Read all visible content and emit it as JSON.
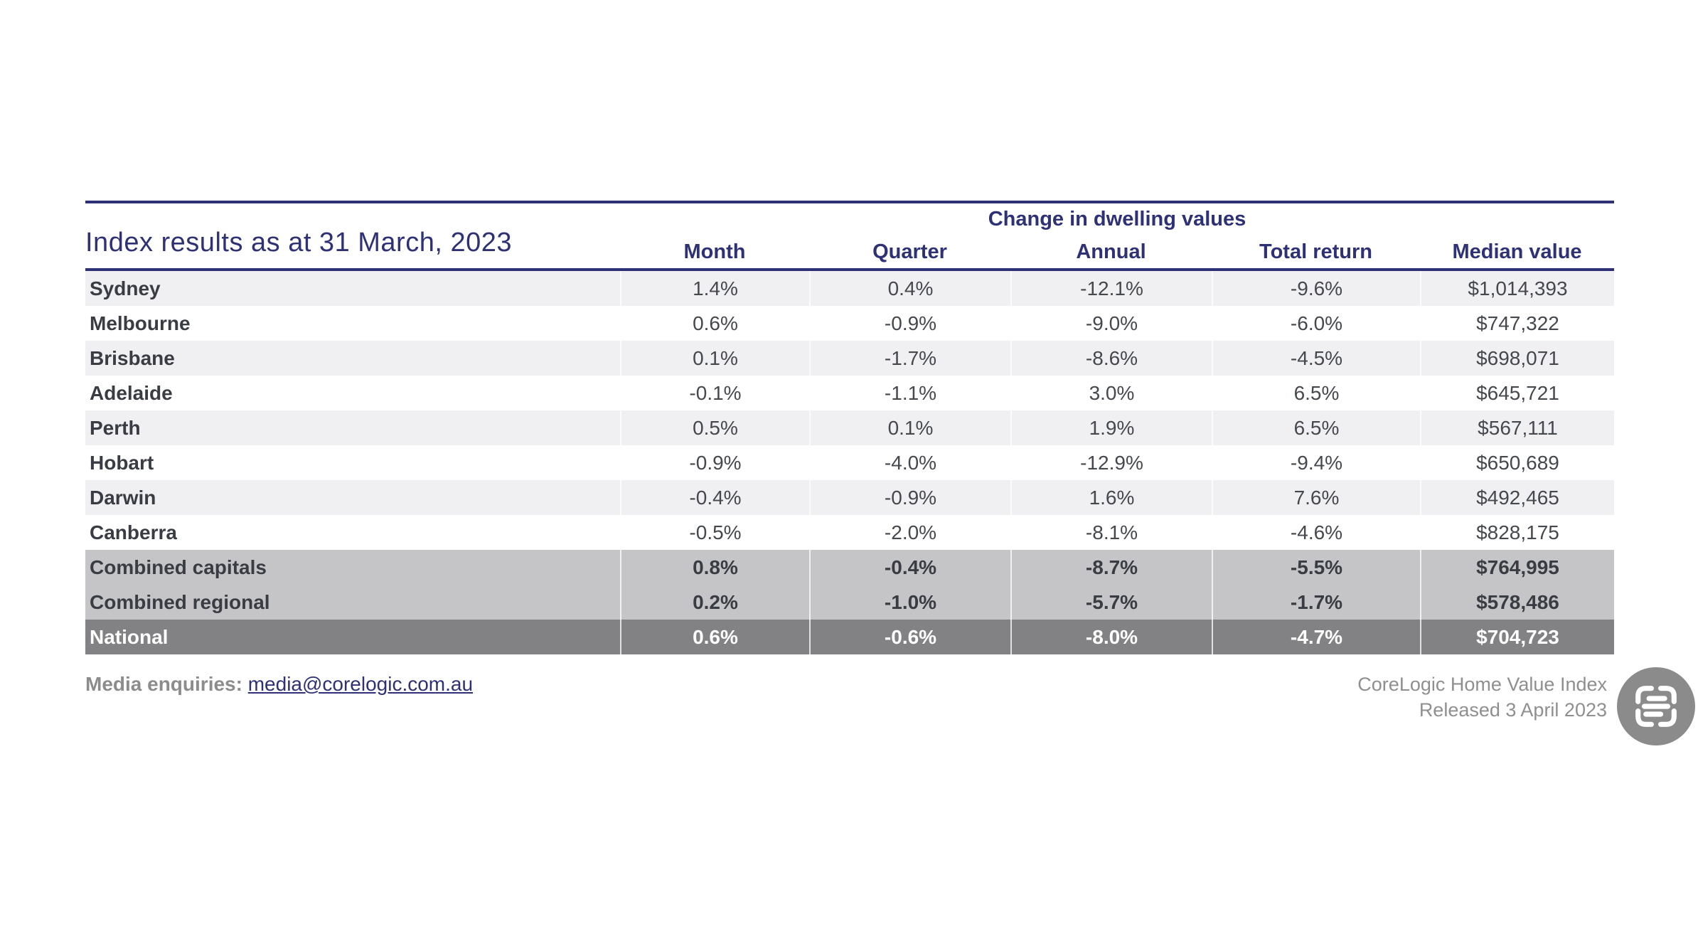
{
  "title": "Index results as at 31 March, 2023",
  "chart_data": {
    "type": "table",
    "title": "Index results as at 31 March, 2023",
    "group_header": "Change in dwelling values",
    "columns": [
      "Month",
      "Quarter",
      "Annual",
      "Total return",
      "Median value"
    ],
    "rows": [
      {
        "label": "Sydney",
        "values": [
          "1.4%",
          "0.4%",
          "-12.1%",
          "-9.6%",
          "$1,014,393"
        ],
        "style": "stripe"
      },
      {
        "label": "Melbourne",
        "values": [
          "0.6%",
          "-0.9%",
          "-9.0%",
          "-6.0%",
          "$747,322"
        ],
        "style": "plain"
      },
      {
        "label": "Brisbane",
        "values": [
          "0.1%",
          "-1.7%",
          "-8.6%",
          "-4.5%",
          "$698,071"
        ],
        "style": "stripe"
      },
      {
        "label": "Adelaide",
        "values": [
          "-0.1%",
          "-1.1%",
          "3.0%",
          "6.5%",
          "$645,721"
        ],
        "style": "plain"
      },
      {
        "label": "Perth",
        "values": [
          "0.5%",
          "0.1%",
          "1.9%",
          "6.5%",
          "$567,111"
        ],
        "style": "stripe"
      },
      {
        "label": "Hobart",
        "values": [
          "-0.9%",
          "-4.0%",
          "-12.9%",
          "-9.4%",
          "$650,689"
        ],
        "style": "plain"
      },
      {
        "label": "Darwin",
        "values": [
          "-0.4%",
          "-0.9%",
          "1.6%",
          "7.6%",
          "$492,465"
        ],
        "style": "stripe"
      },
      {
        "label": "Canberra",
        "values": [
          "-0.5%",
          "-2.0%",
          "-8.1%",
          "-4.6%",
          "$828,175"
        ],
        "style": "plain"
      },
      {
        "label": "Combined capitals",
        "values": [
          "0.8%",
          "-0.4%",
          "-8.7%",
          "-5.5%",
          "$764,995"
        ],
        "style": "summary"
      },
      {
        "label": "Combined regional",
        "values": [
          "0.2%",
          "-1.0%",
          "-5.7%",
          "-1.7%",
          "$578,486"
        ],
        "style": "summary"
      },
      {
        "label": "National",
        "values": [
          "0.6%",
          "-0.6%",
          "-8.0%",
          "-4.7%",
          "$704,723"
        ],
        "style": "national"
      }
    ]
  },
  "footer": {
    "media_label": "Media enquiries:",
    "media_email": "media@corelogic.com.au",
    "source_line1": "CoreLogic Home Value Index",
    "source_line2": "Released 3 April 2023",
    "badge_icon": "scan-text-icon"
  },
  "colors": {
    "navy": "#2e3175",
    "stripe_bg": "#f0f0f3",
    "summary_bg": "#c5c5c7",
    "national_bg": "#828285",
    "body_text": "#45484d",
    "footer_gray": "#8f8f8f",
    "badge_gray": "#8b8b8b"
  }
}
